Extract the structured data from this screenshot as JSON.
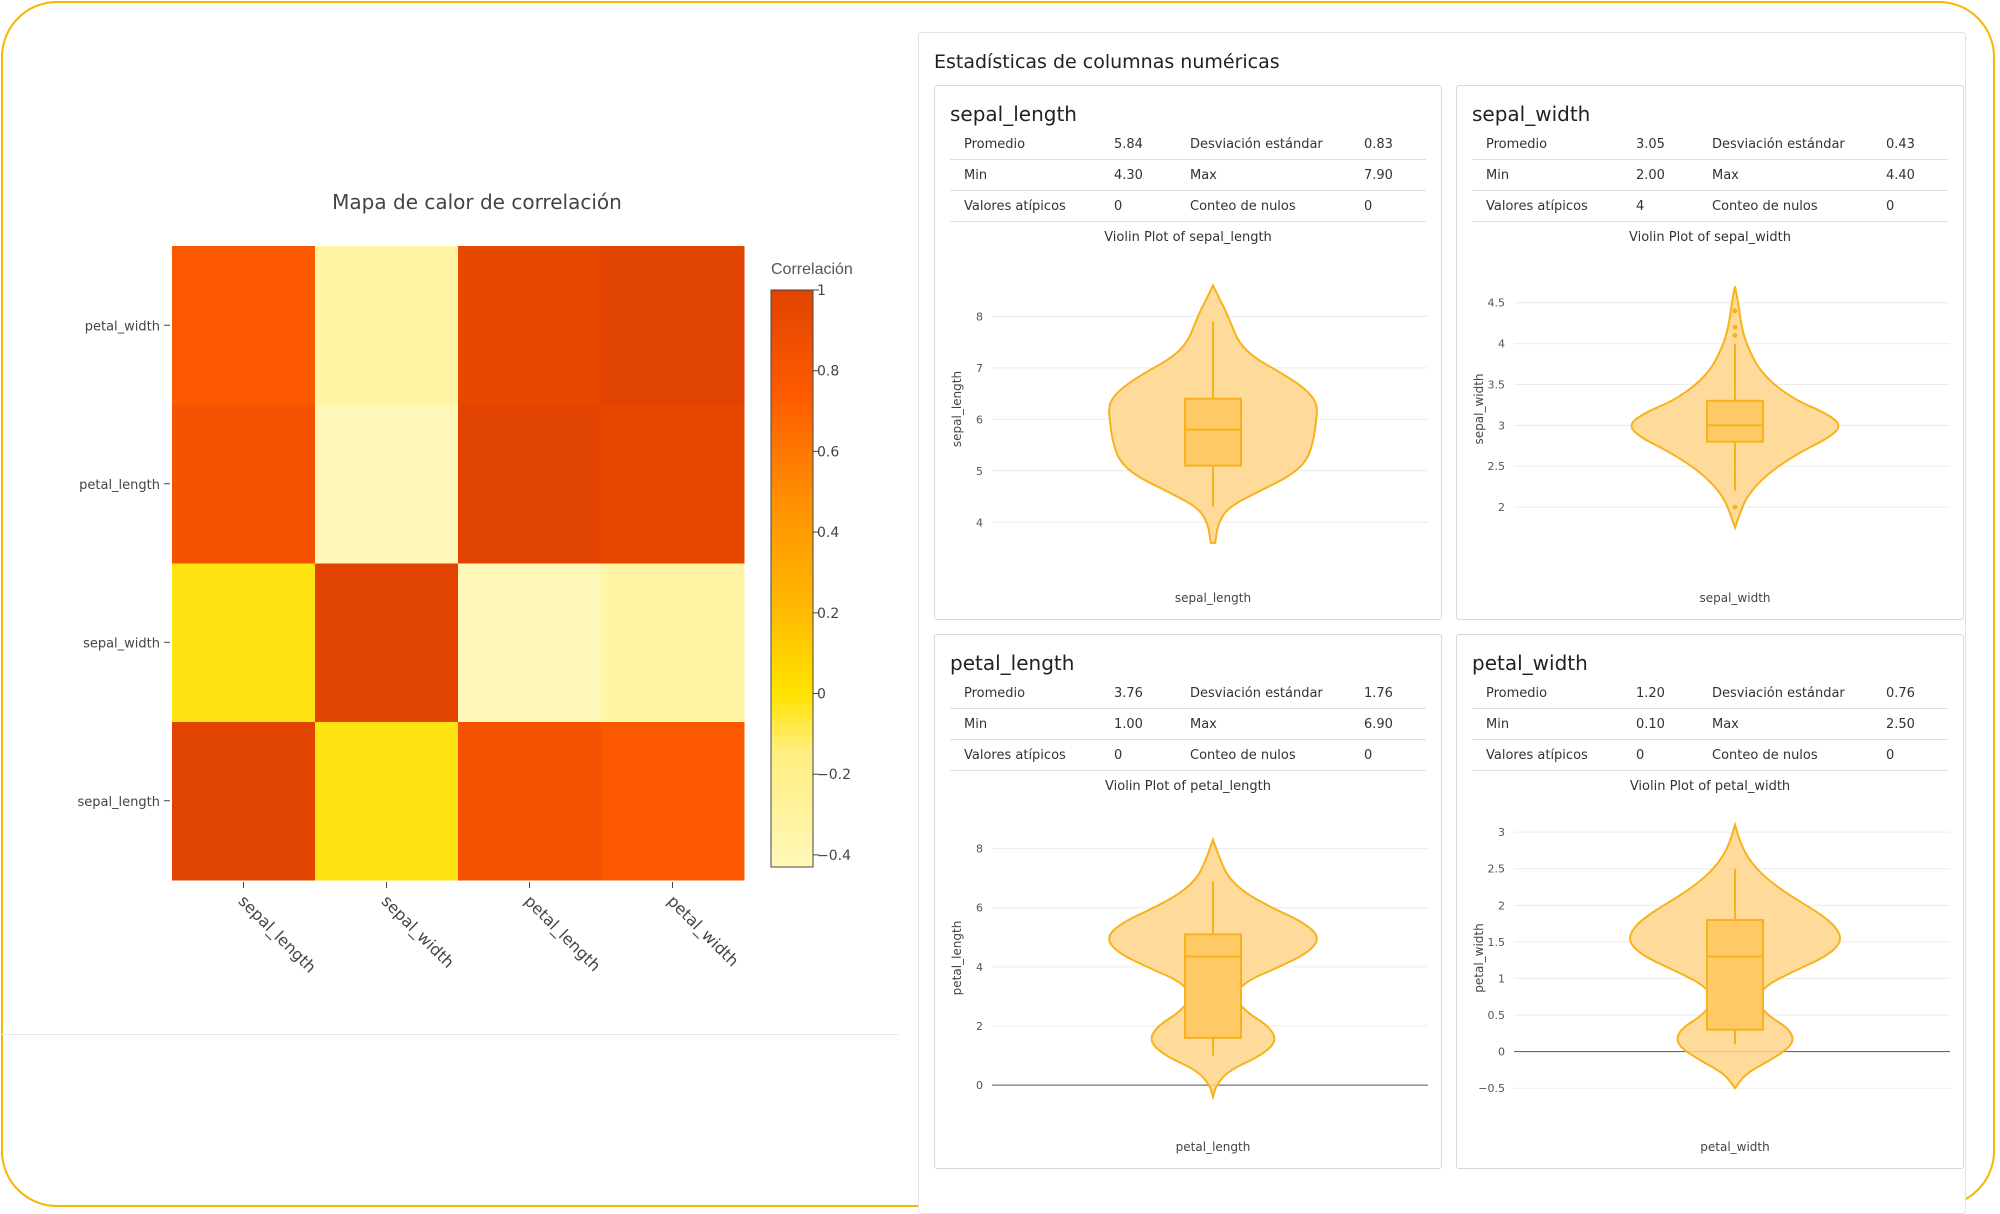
{
  "chart_data": [
    {
      "type": "heatmap",
      "title": "Mapa de calor de correlación",
      "x_categories": [
        "sepal_length",
        "sepal_width",
        "petal_length",
        "petal_width"
      ],
      "y_categories": [
        "sepal_length",
        "sepal_width",
        "petal_length",
        "petal_width"
      ],
      "values": [
        [
          1.0,
          -0.12,
          0.87,
          0.82
        ],
        [
          -0.12,
          1.0,
          -0.43,
          -0.37
        ],
        [
          0.87,
          -0.43,
          1.0,
          0.96
        ],
        [
          0.82,
          -0.37,
          0.96,
          1.0
        ]
      ],
      "colorbar": {
        "title": "Correlación",
        "range": [
          -0.43,
          1.0
        ],
        "ticks": [
          "1",
          "0.8",
          "0.6",
          "0.4",
          "0.2",
          "0",
          "−0.2",
          "−0.4"
        ],
        "tick_values": [
          1,
          0.8,
          0.6,
          0.4,
          0.2,
          0,
          -0.2,
          -0.4
        ]
      }
    },
    {
      "type": "violin",
      "title": "Violin Plot of sepal_length",
      "xlabel": "sepal_length",
      "ylabel": "sepal_length",
      "ylim": [
        3.5,
        8.9
      ],
      "yticks": [
        4,
        5,
        6,
        7,
        8
      ],
      "box": {
        "q1": 5.1,
        "median": 5.8,
        "q3": 6.4,
        "lower_fence": 4.3,
        "upper_fence": 7.9
      },
      "kde_range": [
        3.6,
        8.6
      ],
      "density": [
        [
          3.6,
          0.02
        ],
        [
          4.0,
          0.05
        ],
        [
          4.3,
          0.15
        ],
        [
          4.6,
          0.43
        ],
        [
          4.9,
          0.72
        ],
        [
          5.2,
          0.88
        ],
        [
          5.6,
          0.94
        ],
        [
          5.9,
          0.96
        ],
        [
          6.3,
          0.98
        ],
        [
          6.6,
          0.86
        ],
        [
          6.9,
          0.64
        ],
        [
          7.2,
          0.38
        ],
        [
          7.5,
          0.24
        ],
        [
          7.8,
          0.18
        ],
        [
          8.1,
          0.12
        ],
        [
          8.3,
          0.07
        ],
        [
          8.6,
          0.0
        ]
      ],
      "outliers": []
    },
    {
      "type": "violin",
      "title": "Violin Plot of sepal_width",
      "xlabel": "sepal_width",
      "ylabel": "sepal_width",
      "ylim": [
        1.5,
        4.9
      ],
      "yticks": [
        2,
        2.5,
        3,
        3.5,
        4,
        4.5
      ],
      "box": {
        "q1": 2.8,
        "median": 3.0,
        "q3": 3.3,
        "lower_fence": 2.2,
        "upper_fence": 4.0
      },
      "kde_range": [
        1.75,
        4.7
      ],
      "density": [
        [
          1.75,
          0.0
        ],
        [
          1.9,
          0.04
        ],
        [
          2.1,
          0.1
        ],
        [
          2.3,
          0.22
        ],
        [
          2.5,
          0.4
        ],
        [
          2.7,
          0.65
        ],
        [
          2.85,
          0.88
        ],
        [
          3.0,
          1.0
        ],
        [
          3.15,
          0.85
        ],
        [
          3.3,
          0.58
        ],
        [
          3.5,
          0.36
        ],
        [
          3.7,
          0.22
        ],
        [
          3.9,
          0.14
        ],
        [
          4.1,
          0.08
        ],
        [
          4.3,
          0.05
        ],
        [
          4.5,
          0.03
        ],
        [
          4.7,
          0.0
        ]
      ],
      "outliers": [
        2.0,
        4.1,
        4.2,
        4.4
      ]
    },
    {
      "type": "violin",
      "title": "Violin Plot of petal_length",
      "xlabel": "petal_length",
      "ylabel": "petal_length",
      "ylim": [
        -0.4,
        9.0
      ],
      "yticks": [
        0,
        2,
        4,
        6,
        8
      ],
      "box": {
        "q1": 1.6,
        "median": 4.35,
        "q3": 5.1,
        "lower_fence": 1.0,
        "upper_fence": 6.9
      },
      "kde_range": [
        -0.4,
        8.3
      ],
      "density": [
        [
          -0.4,
          0.0
        ],
        [
          0.0,
          0.03
        ],
        [
          0.5,
          0.15
        ],
        [
          1.0,
          0.45
        ],
        [
          1.5,
          0.6
        ],
        [
          2.0,
          0.52
        ],
        [
          2.5,
          0.3
        ],
        [
          3.0,
          0.2
        ],
        [
          3.5,
          0.3
        ],
        [
          4.0,
          0.62
        ],
        [
          4.5,
          0.9
        ],
        [
          5.0,
          1.0
        ],
        [
          5.5,
          0.85
        ],
        [
          6.0,
          0.55
        ],
        [
          6.5,
          0.3
        ],
        [
          7.0,
          0.15
        ],
        [
          7.5,
          0.08
        ],
        [
          8.0,
          0.03
        ],
        [
          8.3,
          0.0
        ]
      ],
      "outliers": []
    },
    {
      "type": "violin",
      "title": "Violin Plot of petal_width",
      "xlabel": "petal_width",
      "ylabel": "petal_width",
      "ylim": [
        -0.62,
        3.18
      ],
      "yticks": [
        -0.5,
        0,
        0.5,
        1,
        1.5,
        2,
        2.5,
        3
      ],
      "box": {
        "q1": 0.3,
        "median": 1.3,
        "q3": 1.8,
        "lower_fence": 0.1,
        "upper_fence": 2.5
      },
      "kde_range": [
        -0.5,
        3.1
      ],
      "density": [
        [
          -0.5,
          0.0
        ],
        [
          -0.3,
          0.1
        ],
        [
          -0.1,
          0.35
        ],
        [
          0.1,
          0.55
        ],
        [
          0.3,
          0.52
        ],
        [
          0.5,
          0.3
        ],
        [
          0.7,
          0.2
        ],
        [
          0.9,
          0.28
        ],
        [
          1.1,
          0.55
        ],
        [
          1.3,
          0.85
        ],
        [
          1.5,
          1.0
        ],
        [
          1.7,
          0.95
        ],
        [
          1.9,
          0.78
        ],
        [
          2.1,
          0.55
        ],
        [
          2.3,
          0.35
        ],
        [
          2.5,
          0.2
        ],
        [
          2.7,
          0.1
        ],
        [
          2.9,
          0.04
        ],
        [
          3.1,
          0.0
        ]
      ],
      "outliers": []
    }
  ],
  "stats_panel": {
    "title": "Estadísticas de columnas numéricas",
    "cards": [
      {
        "name": "sepal_length",
        "promedio_label": "Promedio",
        "promedio": "5.84",
        "desv_label": "Desviación estándar",
        "desv": "0.83",
        "min_label": "Min",
        "min": "4.30",
        "max_label": "Max",
        "max": "7.90",
        "atip_label": "Valores atípicos",
        "atip": "0",
        "nulos_label": "Conteo de nulos",
        "nulos": "0"
      },
      {
        "name": "sepal_width",
        "promedio_label": "Promedio",
        "promedio": "3.05",
        "desv_label": "Desviación estándar",
        "desv": "0.43",
        "min_label": "Min",
        "min": "2.00",
        "max_label": "Max",
        "max": "4.40",
        "atip_label": "Valores atípicos",
        "atip": "4",
        "nulos_label": "Conteo de nulos",
        "nulos": "0"
      },
      {
        "name": "petal_length",
        "promedio_label": "Promedio",
        "promedio": "3.76",
        "desv_label": "Desviación estándar",
        "desv": "1.76",
        "min_label": "Min",
        "min": "1.00",
        "max_label": "Max",
        "max": "6.90",
        "atip_label": "Valores atípicos",
        "atip": "0",
        "nulos_label": "Conteo de nulos",
        "nulos": "0"
      },
      {
        "name": "petal_width",
        "promedio_label": "Promedio",
        "promedio": "1.20",
        "desv_label": "Desviación estándar",
        "desv": "0.76",
        "min_label": "Min",
        "min": "0.10",
        "max_label": "Max",
        "max": "2.50",
        "atip_label": "Valores atípicos",
        "atip": "0",
        "nulos_label": "Conteo de nulos",
        "nulos": "0"
      }
    ]
  },
  "colors": {
    "frame": "#f5b700",
    "violin_fill": "#ffd58a",
    "violin_line": "#f7b21c",
    "box_fill": "#ffca66"
  }
}
